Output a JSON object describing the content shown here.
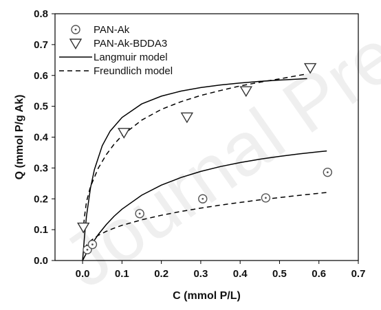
{
  "watermark": "Journal Pre-proof",
  "chart_data": {
    "type": "scatter",
    "xlabel": "C (mmol P/L)",
    "ylabel": "Q (mmol P/g Ak)",
    "xlim": [
      -0.07,
      0.7
    ],
    "ylim": [
      0.0,
      0.8
    ],
    "x_ticks": [
      "0.0",
      "0.1",
      "0.2",
      "0.3",
      "0.4",
      "0.5",
      "0.6",
      "0.7"
    ],
    "y_ticks": [
      "0.0",
      "0.1",
      "0.2",
      "0.3",
      "0.4",
      "0.5",
      "0.6",
      "0.7",
      "0.8"
    ],
    "grid": false,
    "legend_position": "top-left",
    "series": [
      {
        "name": "PAN-Ak",
        "kind": "points",
        "marker": "circle-dot",
        "points": [
          [
            0.012,
            0.035
          ],
          [
            0.025,
            0.052
          ],
          [
            0.145,
            0.152
          ],
          [
            0.305,
            0.2
          ],
          [
            0.465,
            0.203
          ],
          [
            0.622,
            0.286
          ]
        ]
      },
      {
        "name": "PAN-Ak-BDDA3",
        "kind": "points",
        "marker": "triangle-down",
        "points": [
          [
            0.002,
            0.108
          ],
          [
            0.105,
            0.415
          ],
          [
            0.265,
            0.465
          ],
          [
            0.415,
            0.55
          ],
          [
            0.578,
            0.625
          ]
        ]
      },
      {
        "name": "Langmuir model",
        "kind": "line",
        "dash": "solid",
        "curves": [
          {
            "x": [
              0.0,
              0.005,
              0.01,
              0.02,
              0.04,
              0.06,
              0.08,
              0.1,
              0.15,
              0.2,
              0.25,
              0.3,
              0.35,
              0.4,
              0.45,
              0.5,
              0.55,
              0.6,
              0.62
            ],
            "y": [
              0.0,
              0.0125,
              0.0244,
              0.0464,
              0.0846,
              0.1164,
              0.1434,
              0.1665,
              0.2117,
              0.2444,
              0.2693,
              0.2888,
              0.3046,
              0.3176,
              0.3284,
              0.3377,
              0.3456,
              0.3526,
              0.3551
            ]
          },
          {
            "x": [
              0.0,
              0.005,
              0.01,
              0.02,
              0.03,
              0.05,
              0.07,
              0.1,
              0.15,
              0.2,
              0.25,
              0.3,
              0.35,
              0.4,
              0.45,
              0.5,
              0.57
            ],
            "y": [
              0.0,
              0.0818,
              0.1444,
              0.2342,
              0.2951,
              0.3724,
              0.4195,
              0.4637,
              0.5076,
              0.5329,
              0.5493,
              0.5607,
              0.5692,
              0.5757,
              0.5808,
              0.5849,
              0.5897
            ]
          }
        ]
      },
      {
        "name": "Freundlich model",
        "kind": "line",
        "dash": "dashed",
        "curves": [
          {
            "x": [
              0.005,
              0.01,
              0.02,
              0.04,
              0.06,
              0.08,
              0.1,
              0.15,
              0.2,
              0.25,
              0.3,
              0.35,
              0.4,
              0.45,
              0.5,
              0.55,
              0.6,
              0.62
            ],
            "y": [
              0.0385,
              0.0495,
              0.0637,
              0.0818,
              0.0945,
              0.105,
              0.1141,
              0.1319,
              0.1466,
              0.159,
              0.1698,
              0.1796,
              0.1884,
              0.1966,
              0.2042,
              0.2113,
              0.218,
              0.2206
            ]
          },
          {
            "x": [
              0.0015,
              0.003,
              0.005,
              0.01,
              0.02,
              0.04,
              0.06,
              0.08,
              0.1,
              0.15,
              0.2,
              0.25,
              0.3,
              0.35,
              0.4,
              0.45,
              0.5,
              0.57
            ],
            "y": [
              0.09,
              0.118,
              0.145,
              0.191,
              0.239,
              0.3,
              0.343,
              0.377,
              0.405,
              0.455,
              0.49,
              0.515,
              0.535,
              0.551,
              0.566,
              0.578,
              0.589,
              0.605
            ]
          }
        ]
      }
    ]
  }
}
